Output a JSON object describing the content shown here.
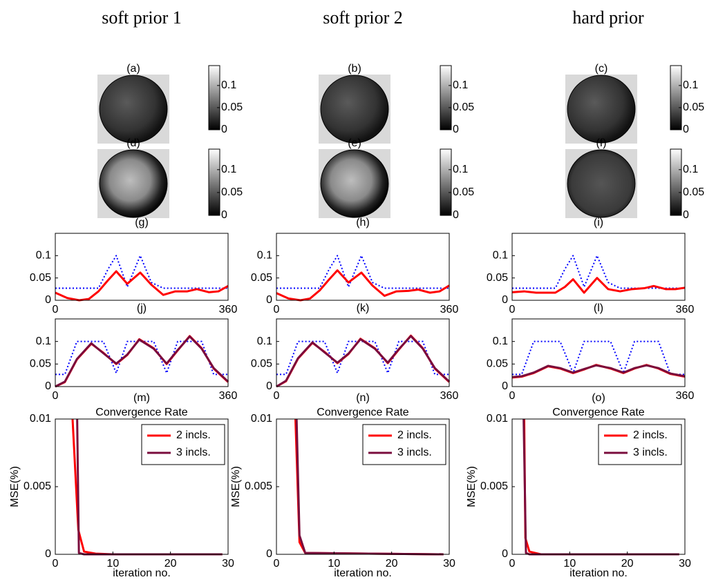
{
  "column_titles": [
    "soft prior 1",
    "soft prior 2",
    "hard prior"
  ],
  "chart_data": [
    {
      "type": "image",
      "label": "(a)",
      "ylim": [
        0,
        0.145
      ],
      "yticks": [
        0,
        0.05,
        0.1
      ]
    },
    {
      "type": "image",
      "label": "(b)",
      "ylim": [
        0,
        0.145
      ],
      "yticks": [
        0,
        0.05,
        0.1
      ]
    },
    {
      "type": "image",
      "label": "(c)",
      "ylim": [
        0,
        0.145
      ],
      "yticks": [
        0,
        0.05,
        0.1
      ]
    },
    {
      "type": "image",
      "label": "(d)",
      "ylim": [
        0,
        0.145
      ],
      "yticks": [
        0,
        0.05,
        0.1
      ]
    },
    {
      "type": "image",
      "label": "(e)",
      "ylim": [
        0,
        0.145
      ],
      "yticks": [
        0,
        0.05,
        0.1
      ]
    },
    {
      "type": "image",
      "label": "(f)",
      "ylim": [
        0,
        0.145
      ],
      "yticks": [
        0,
        0.05,
        0.1
      ]
    },
    {
      "type": "line",
      "label": "(g)",
      "xlim": [
        0,
        360
      ],
      "xticks": [
        0,
        360
      ],
      "ylim": [
        0,
        0.15
      ],
      "yticks": [
        0,
        0.05,
        0.1
      ],
      "series": [
        {
          "color": "#0000ff",
          "style": "dotted",
          "x": [
            0,
            25,
            50,
            70,
            90,
            110,
            127,
            150,
            177,
            200,
            225,
            250,
            275,
            295,
            320,
            340,
            360
          ],
          "values": [
            0.027,
            0.027,
            0.027,
            0.027,
            0.027,
            0.07,
            0.1,
            0.03,
            0.1,
            0.04,
            0.027,
            0.027,
            0.027,
            0.027,
            0.027,
            0.027,
            0.027
          ]
        },
        {
          "color": "#ff0000",
          "style": "solid",
          "x": [
            0,
            25,
            50,
            70,
            90,
            110,
            127,
            150,
            177,
            200,
            225,
            250,
            275,
            295,
            320,
            340,
            360
          ],
          "values": [
            0.017,
            0.005,
            0,
            0.003,
            0.02,
            0.045,
            0.065,
            0.037,
            0.062,
            0.035,
            0.012,
            0.02,
            0.02,
            0.025,
            0.018,
            0.02,
            0.032
          ]
        }
      ]
    },
    {
      "type": "line",
      "label": "(h)",
      "xlim": [
        0,
        360
      ],
      "xticks": [
        0,
        360
      ],
      "ylim": [
        0,
        0.15
      ],
      "yticks": [
        0,
        0.05,
        0.1
      ],
      "series": [
        {
          "color": "#0000ff",
          "style": "dotted",
          "x": [
            0,
            25,
            50,
            70,
            90,
            110,
            127,
            150,
            177,
            200,
            225,
            250,
            275,
            295,
            320,
            340,
            360
          ],
          "values": [
            0.027,
            0.027,
            0.027,
            0.027,
            0.027,
            0.07,
            0.1,
            0.03,
            0.1,
            0.04,
            0.027,
            0.027,
            0.027,
            0.027,
            0.027,
            0.027,
            0.027
          ]
        },
        {
          "color": "#ff0000",
          "style": "solid",
          "x": [
            0,
            25,
            50,
            70,
            90,
            110,
            127,
            150,
            177,
            200,
            225,
            250,
            275,
            295,
            320,
            340,
            360
          ],
          "values": [
            0.016,
            0.004,
            0,
            0.004,
            0.022,
            0.047,
            0.067,
            0.04,
            0.062,
            0.033,
            0.01,
            0.02,
            0.021,
            0.024,
            0.017,
            0.02,
            0.033
          ]
        }
      ]
    },
    {
      "type": "line",
      "label": "(i)",
      "xlim": [
        0,
        360
      ],
      "xticks": [
        0,
        360
      ],
      "ylim": [
        0,
        0.15
      ],
      "yticks": [
        0,
        0.05,
        0.1
      ],
      "series": [
        {
          "color": "#0000ff",
          "style": "dotted",
          "x": [
            0,
            25,
            50,
            70,
            90,
            110,
            127,
            150,
            177,
            200,
            225,
            250,
            275,
            295,
            320,
            340,
            360
          ],
          "values": [
            0.027,
            0.027,
            0.027,
            0.027,
            0.027,
            0.07,
            0.1,
            0.03,
            0.1,
            0.04,
            0.027,
            0.027,
            0.027,
            0.027,
            0.027,
            0.027,
            0.027
          ]
        },
        {
          "color": "#ff0000",
          "style": "solid",
          "x": [
            0,
            25,
            50,
            70,
            90,
            110,
            127,
            150,
            177,
            200,
            225,
            250,
            275,
            295,
            320,
            340,
            360
          ],
          "values": [
            0.018,
            0.02,
            0.017,
            0.017,
            0.017,
            0.03,
            0.047,
            0.017,
            0.05,
            0.025,
            0.02,
            0.025,
            0.027,
            0.032,
            0.025,
            0.025,
            0.028
          ]
        }
      ]
    },
    {
      "type": "line",
      "label": "(j)",
      "xlim": [
        0,
        360
      ],
      "xticks": [
        0,
        360
      ],
      "ylim": [
        0,
        0.15
      ],
      "yticks": [
        0,
        0.05,
        0.1
      ],
      "series": [
        {
          "color": "#0000ff",
          "style": "dotted",
          "x": [
            0,
            20,
            45,
            75,
            100,
            127,
            150,
            175,
            205,
            232,
            255,
            280,
            305,
            330,
            360
          ],
          "values": [
            0.027,
            0.027,
            0.1,
            0.1,
            0.1,
            0.03,
            0.1,
            0.1,
            0.1,
            0.03,
            0.1,
            0.1,
            0.1,
            0.027,
            0.027
          ]
        },
        {
          "color": "#ff0000",
          "style": "solid",
          "x": [
            0,
            20,
            45,
            75,
            100,
            127,
            150,
            175,
            205,
            232,
            255,
            280,
            305,
            330,
            360
          ],
          "values": [
            0,
            0.01,
            0.06,
            0.095,
            0.075,
            0.05,
            0.07,
            0.105,
            0.085,
            0.05,
            0.08,
            0.112,
            0.085,
            0.04,
            0.01
          ]
        },
        {
          "color": "#7a0c3c",
          "style": "solid",
          "x": [
            0,
            20,
            45,
            75,
            100,
            127,
            150,
            175,
            205,
            232,
            255,
            280,
            305,
            330,
            360
          ],
          "values": [
            0,
            0.011,
            0.061,
            0.096,
            0.074,
            0.051,
            0.071,
            0.104,
            0.084,
            0.051,
            0.081,
            0.111,
            0.084,
            0.041,
            0.011
          ]
        }
      ]
    },
    {
      "type": "line",
      "label": "(k)",
      "xlim": [
        0,
        360
      ],
      "xticks": [
        0,
        360
      ],
      "ylim": [
        0,
        0.15
      ],
      "yticks": [
        0,
        0.05,
        0.1
      ],
      "series": [
        {
          "color": "#0000ff",
          "style": "dotted",
          "x": [
            0,
            20,
            45,
            75,
            100,
            127,
            150,
            175,
            205,
            232,
            255,
            280,
            305,
            330,
            360
          ],
          "values": [
            0.027,
            0.027,
            0.1,
            0.1,
            0.1,
            0.03,
            0.1,
            0.1,
            0.1,
            0.03,
            0.1,
            0.1,
            0.1,
            0.027,
            0.027
          ]
        },
        {
          "color": "#ff0000",
          "style": "solid",
          "x": [
            0,
            20,
            45,
            75,
            100,
            127,
            150,
            175,
            205,
            232,
            255,
            280,
            305,
            330,
            360
          ],
          "values": [
            0,
            0.012,
            0.062,
            0.097,
            0.077,
            0.052,
            0.072,
            0.106,
            0.085,
            0.052,
            0.082,
            0.113,
            0.085,
            0.04,
            0.01
          ]
        },
        {
          "color": "#7a0c3c",
          "style": "solid",
          "x": [
            0,
            20,
            45,
            75,
            100,
            127,
            150,
            175,
            205,
            232,
            255,
            280,
            305,
            330,
            360
          ],
          "values": [
            0,
            0.013,
            0.063,
            0.098,
            0.076,
            0.053,
            0.073,
            0.105,
            0.084,
            0.053,
            0.083,
            0.112,
            0.084,
            0.041,
            0.011
          ]
        }
      ]
    },
    {
      "type": "line",
      "label": "(l)",
      "xlim": [
        0,
        360
      ],
      "xticks": [
        0,
        360
      ],
      "ylim": [
        0,
        0.15
      ],
      "yticks": [
        0,
        0.05,
        0.1
      ],
      "series": [
        {
          "color": "#0000ff",
          "style": "dotted",
          "x": [
            0,
            20,
            45,
            75,
            100,
            127,
            150,
            175,
            205,
            232,
            255,
            280,
            305,
            330,
            360
          ],
          "values": [
            0.027,
            0.027,
            0.1,
            0.1,
            0.1,
            0.03,
            0.1,
            0.1,
            0.1,
            0.03,
            0.1,
            0.1,
            0.1,
            0.027,
            0.027
          ]
        },
        {
          "color": "#ff0000",
          "style": "solid",
          "x": [
            0,
            20,
            45,
            75,
            100,
            127,
            150,
            175,
            205,
            232,
            255,
            280,
            305,
            330,
            360
          ],
          "values": [
            0.02,
            0.022,
            0.03,
            0.045,
            0.04,
            0.03,
            0.038,
            0.048,
            0.04,
            0.03,
            0.04,
            0.048,
            0.04,
            0.028,
            0.022
          ]
        },
        {
          "color": "#7a0c3c",
          "style": "solid",
          "x": [
            0,
            20,
            45,
            75,
            100,
            127,
            150,
            175,
            205,
            232,
            255,
            280,
            305,
            330,
            360
          ],
          "values": [
            0.021,
            0.023,
            0.031,
            0.046,
            0.041,
            0.031,
            0.039,
            0.047,
            0.041,
            0.031,
            0.041,
            0.047,
            0.041,
            0.029,
            0.023
          ]
        }
      ]
    },
    {
      "type": "line",
      "label": "(m)",
      "title": "Convergence Rate",
      "xlabel": "iteration no.",
      "ylabel": "MSE(%)",
      "legend": "upper right",
      "xlim": [
        0,
        30
      ],
      "xticks": [
        0,
        10,
        20,
        30
      ],
      "ylim": [
        0,
        0.01
      ],
      "yticks": [
        0,
        0.005,
        0.01
      ],
      "series": [
        {
          "name": "2 incls.",
          "color": "#ff0000",
          "style": "solid",
          "x": [
            3,
            4,
            5,
            7,
            10,
            29
          ],
          "values": [
            0.01,
            0.0018,
            0.0002,
            5e-05,
            0,
            0
          ]
        },
        {
          "name": "3 incls.",
          "color": "#7a0c3c",
          "style": "solid",
          "x": [
            3.8,
            4.1,
            5,
            29
          ],
          "values": [
            0.01,
            0.0001,
            0,
            0
          ]
        }
      ]
    },
    {
      "type": "line",
      "label": "(n)",
      "title": "Convergence Rate",
      "xlabel": "iteration no.",
      "ylabel": "MSE(%)",
      "legend": "upper right",
      "xlim": [
        0,
        30
      ],
      "xticks": [
        0,
        10,
        20,
        30
      ],
      "ylim": [
        0,
        0.01
      ],
      "yticks": [
        0,
        0.005,
        0.01
      ],
      "series": [
        {
          "name": "2 incls.",
          "color": "#ff0000",
          "style": "solid",
          "x": [
            3.3,
            4,
            5,
            29
          ],
          "values": [
            0.01,
            0.0009,
            0.0001,
            0
          ]
        },
        {
          "name": "3 incls.",
          "color": "#7a0c3c",
          "style": "solid",
          "x": [
            3.5,
            4,
            5,
            29
          ],
          "values": [
            0.01,
            0.0014,
            0.0001,
            0
          ]
        }
      ]
    },
    {
      "type": "line",
      "label": "(o)",
      "title": "Convergence Rate",
      "xlabel": "iteration no.",
      "ylabel": "MSE(%)",
      "legend": "upper right",
      "xlim": [
        0,
        30
      ],
      "xticks": [
        0,
        10,
        20,
        30
      ],
      "ylim": [
        0,
        0.01
      ],
      "yticks": [
        0,
        0.005,
        0.01
      ],
      "series": [
        {
          "name": "2 incls.",
          "color": "#ff0000",
          "style": "solid",
          "x": [
            2.1,
            2.3,
            3,
            5,
            29
          ],
          "values": [
            0.01,
            0.0012,
            0.0002,
            0,
            0
          ]
        },
        {
          "name": "3 incls.",
          "color": "#7a0c3c",
          "style": "solid",
          "x": [
            2,
            2.4,
            3,
            29
          ],
          "values": [
            0.01,
            0.0001,
            0,
            0
          ]
        }
      ]
    }
  ]
}
